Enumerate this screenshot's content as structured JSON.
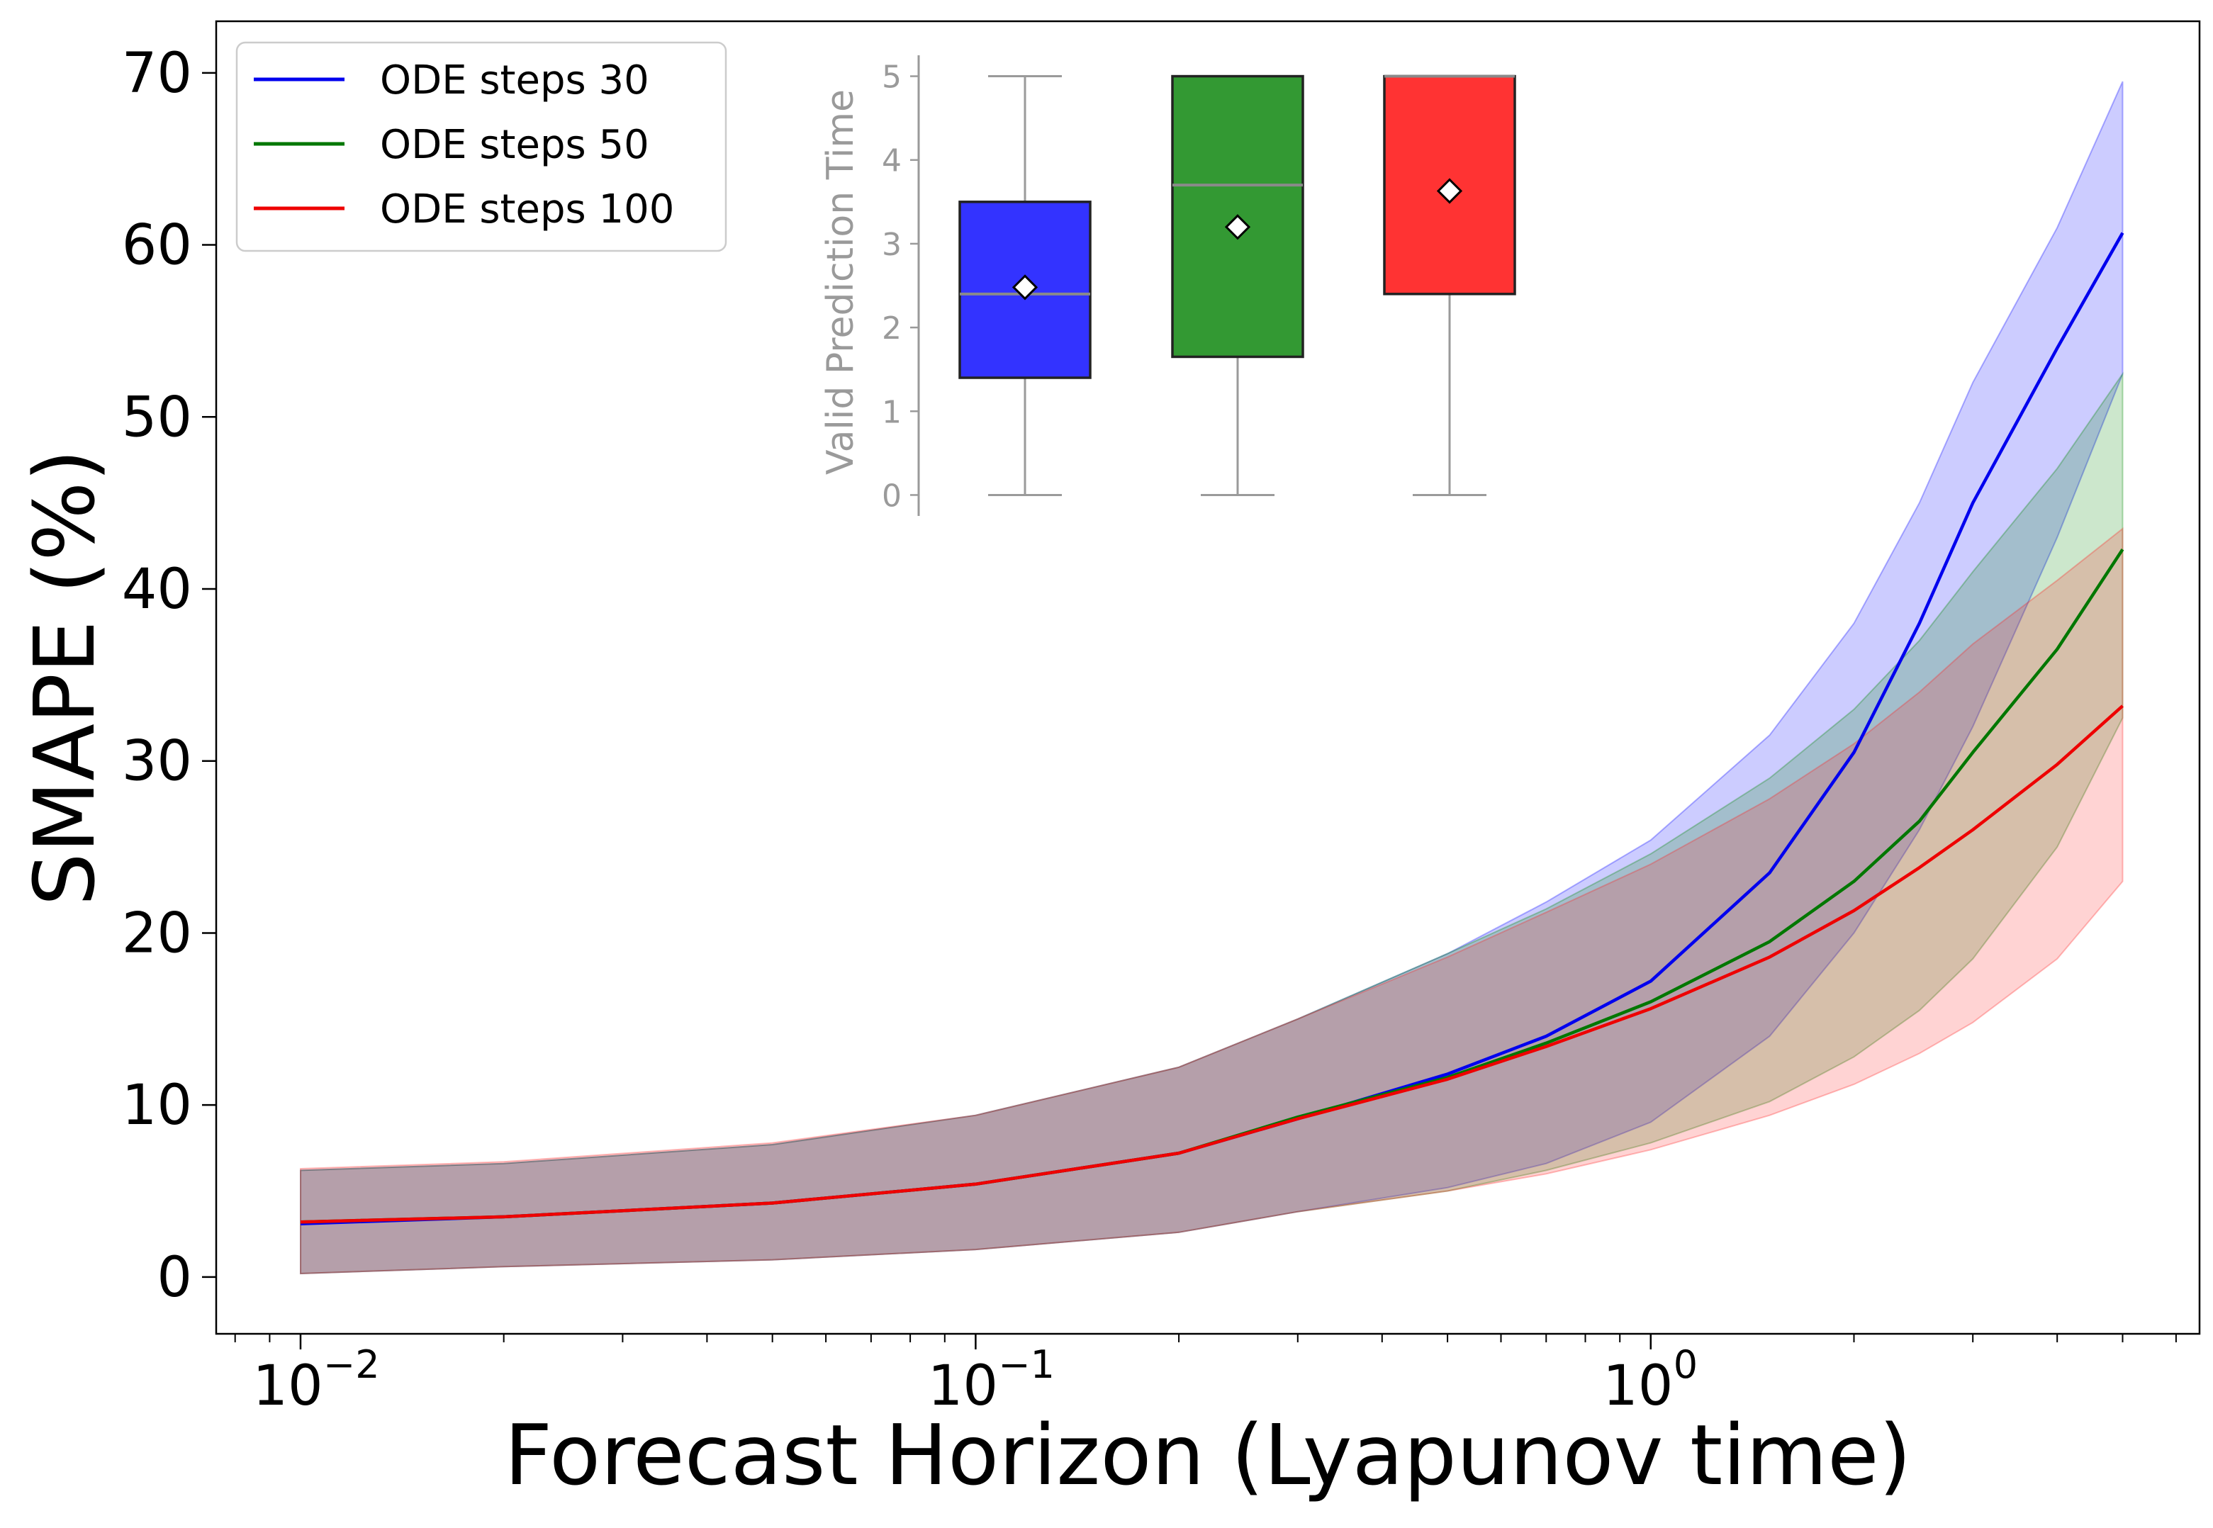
{
  "chart_data": {
    "type": "line",
    "title": "",
    "xlabel": "Forecast Horizon (Lyapunov time)",
    "ylabel": "SMAPE (%)",
    "xscale": "log",
    "xlim": [
      0.0075,
      6.5
    ],
    "ylim": [
      -3.3,
      73
    ],
    "x_ticks": [
      {
        "value": 0.01,
        "label": "10",
        "exp": "−2"
      },
      {
        "value": 0.1,
        "label": "10",
        "exp": "−1"
      },
      {
        "value": 1,
        "label": "10",
        "exp": "0"
      }
    ],
    "y_ticks": [
      0,
      10,
      20,
      30,
      40,
      50,
      60,
      70
    ],
    "legend_position": "top-left",
    "x": [
      0.01,
      0.02,
      0.05,
      0.1,
      0.2,
      0.3,
      0.5,
      0.7,
      1.0,
      1.5,
      2.0,
      2.5,
      3.0,
      4.0,
      5.0
    ],
    "series": [
      {
        "name": "ODE steps 30",
        "color": "#0000ee",
        "fill": "#0000ff",
        "mean": [
          3.1,
          3.5,
          4.3,
          5.4,
          7.2,
          9.2,
          11.8,
          14.0,
          17.2,
          23.5,
          30.5,
          38.0,
          45.0,
          54.0,
          60.7
        ],
        "upper": [
          6.2,
          6.6,
          7.7,
          9.4,
          12.2,
          15.0,
          18.8,
          21.8,
          25.4,
          31.5,
          38.0,
          45.0,
          52.0,
          61.0,
          69.5
        ],
        "lower": [
          0.2,
          0.6,
          1.0,
          1.6,
          2.6,
          3.8,
          5.2,
          6.6,
          9.0,
          14.0,
          20.0,
          26.0,
          32.0,
          43.0,
          52.5
        ]
      },
      {
        "name": "ODE steps 50",
        "color": "#007700",
        "fill": "#008800",
        "mean": [
          3.2,
          3.5,
          4.3,
          5.4,
          7.2,
          9.3,
          11.6,
          13.6,
          16.0,
          19.5,
          23.0,
          26.5,
          30.5,
          36.5,
          42.3
        ],
        "upper": [
          6.2,
          6.6,
          7.7,
          9.4,
          12.2,
          15.0,
          18.8,
          21.4,
          24.6,
          29.0,
          33.0,
          37.0,
          41.0,
          47.0,
          52.5
        ],
        "lower": [
          0.2,
          0.6,
          1.0,
          1.6,
          2.6,
          3.8,
          5.0,
          6.2,
          7.8,
          10.2,
          12.8,
          15.5,
          18.5,
          25.0,
          32.5
        ]
      },
      {
        "name": "ODE steps 100",
        "color": "#ee0000",
        "fill": "#ff2222",
        "mean": [
          3.2,
          3.5,
          4.3,
          5.4,
          7.2,
          9.2,
          11.5,
          13.4,
          15.6,
          18.6,
          21.3,
          23.8,
          26.0,
          29.8,
          33.2
        ],
        "upper": [
          6.3,
          6.7,
          7.8,
          9.4,
          12.2,
          15.0,
          18.6,
          21.2,
          24.0,
          27.8,
          31.0,
          34.0,
          36.8,
          40.5,
          43.5
        ],
        "lower": [
          0.2,
          0.6,
          1.0,
          1.6,
          2.6,
          3.8,
          5.0,
          6.0,
          7.4,
          9.4,
          11.2,
          13.0,
          14.8,
          18.5,
          23.0
        ]
      }
    ],
    "inset": {
      "type": "box",
      "ylabel": "Valid Prediction Time",
      "ylim": [
        -0.25,
        5.25
      ],
      "y_ticks": [
        0,
        1,
        2,
        3,
        4,
        5
      ],
      "boxes": [
        {
          "name": "ODE steps 30",
          "color": "#3333ff",
          "whisker_low": 0,
          "q1": 1.4,
          "median": 2.4,
          "q3": 3.5,
          "whisker_high": 5,
          "mean": 2.48
        },
        {
          "name": "ODE steps 50",
          "color": "#339933",
          "whisker_low": 0,
          "q1": 1.65,
          "median": 3.7,
          "q3": 5,
          "whisker_high": 5,
          "mean": 3.2
        },
        {
          "name": "ODE steps 100",
          "color": "#ff3333",
          "whisker_low": 0,
          "q1": 2.4,
          "median": 5,
          "q3": 5,
          "whisker_high": 5,
          "mean": 3.63
        }
      ]
    }
  }
}
